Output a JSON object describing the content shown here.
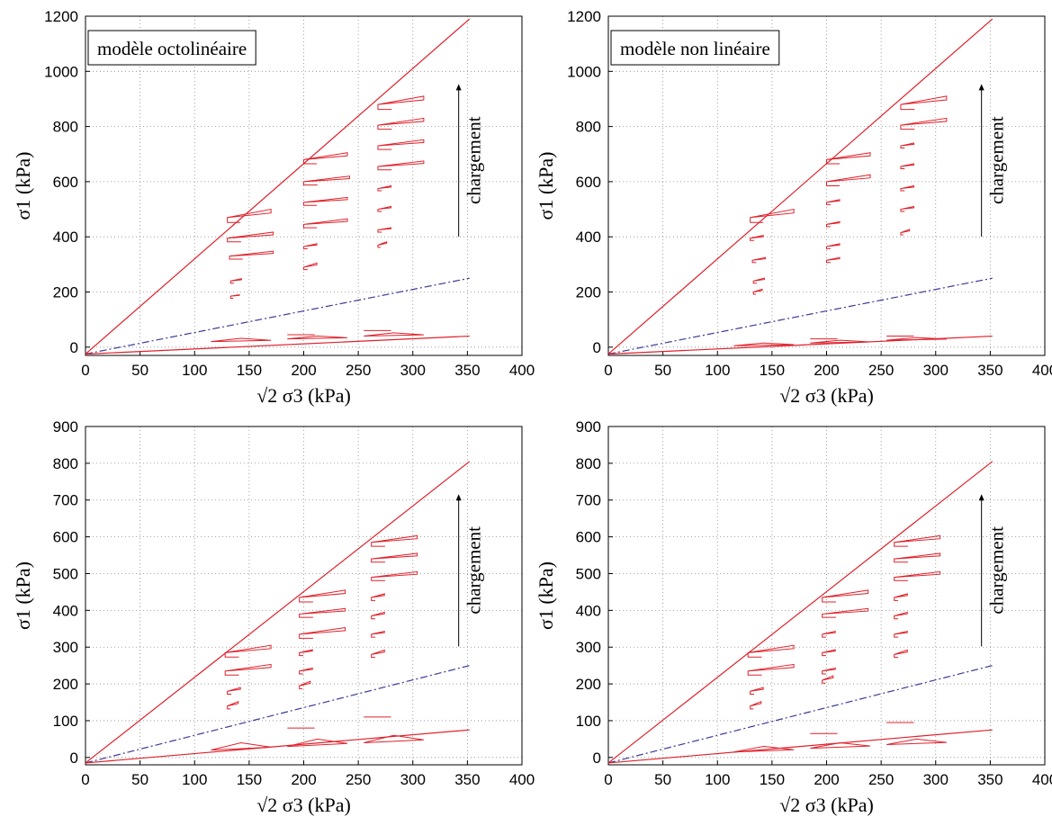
{
  "chart_data": [
    {
      "type": "line",
      "panel": "top-left",
      "title_box": "modèle octolinéaire",
      "xlabel": "√2 σ3 (kPa)",
      "ylabel": "σ1 (kPa)",
      "xlim": [
        0,
        400
      ],
      "ylim": [
        -30,
        1200
      ],
      "xticks": [
        "0",
        "50",
        "100",
        "150",
        "200",
        "250",
        "300",
        "350",
        "400"
      ],
      "yticks": [
        "0",
        "200",
        "400",
        "600",
        "800",
        "1000",
        "1200"
      ],
      "ytick_values": [
        0,
        200,
        400,
        600,
        800,
        1000,
        1200
      ],
      "grid": true,
      "arrow_label": "chargement",
      "lines": [
        {
          "style": "solid",
          "color": "#e0202a",
          "x": [
            0,
            352
          ],
          "y": [
            -25,
            1190
          ]
        },
        {
          "style": "dashdot",
          "color": "#3a3a9a",
          "x": [
            0,
            352
          ],
          "y": [
            -25,
            250
          ]
        },
        {
          "style": "solid",
          "color": "#e0202a",
          "x": [
            0,
            352
          ],
          "y": [
            -25,
            40
          ]
        }
      ],
      "glyphs": [
        {
          "x": 130,
          "y": 470,
          "dx": 40,
          "dy": 30
        },
        {
          "x": 130,
          "y": 395,
          "dx": 42,
          "dy": 22
        },
        {
          "x": 132,
          "y": 330,
          "dx": 40,
          "dy": 18
        },
        {
          "x": 133,
          "y": 240,
          "dx": 10,
          "dy": 8
        },
        {
          "x": 133,
          "y": 185,
          "dx": 8,
          "dy": 5
        },
        {
          "x": 200,
          "y": 680,
          "dx": 40,
          "dy": 25
        },
        {
          "x": 200,
          "y": 600,
          "dx": 42,
          "dy": 20
        },
        {
          "x": 200,
          "y": 525,
          "dx": 40,
          "dy": 18
        },
        {
          "x": 200,
          "y": 445,
          "dx": 40,
          "dy": 20
        },
        {
          "x": 200,
          "y": 365,
          "dx": 12,
          "dy": 10
        },
        {
          "x": 200,
          "y": 290,
          "dx": 12,
          "dy": 15
        },
        {
          "x": 268,
          "y": 880,
          "dx": 42,
          "dy": 30
        },
        {
          "x": 268,
          "y": 805,
          "dx": 42,
          "dy": 25
        },
        {
          "x": 268,
          "y": 730,
          "dx": 42,
          "dy": 22
        },
        {
          "x": 268,
          "y": 655,
          "dx": 42,
          "dy": 20
        },
        {
          "x": 268,
          "y": 575,
          "dx": 12,
          "dy": 10
        },
        {
          "x": 268,
          "y": 500,
          "dx": 12,
          "dy": 10
        },
        {
          "x": 268,
          "y": 425,
          "dx": 12,
          "dy": 8
        },
        {
          "x": 268,
          "y": 370,
          "dx": 8,
          "dy": 12
        }
      ],
      "low_glyphs": [
        {
          "x": 115,
          "y": 20,
          "dx": 55,
          "dy": 12
        },
        {
          "x": 185,
          "y": 30,
          "dx": 55,
          "dy": 10
        },
        {
          "x": 255,
          "y": 40,
          "dx": 55,
          "dy": 12
        },
        {
          "x": 185,
          "y": 45,
          "dx": 25,
          "dy": 0
        },
        {
          "x": 255,
          "y": 60,
          "dx": 25,
          "dy": 0
        }
      ]
    },
    {
      "type": "line",
      "panel": "top-right",
      "title_box": "modèle non linéaire",
      "xlabel": "√2 σ3 (kPa)",
      "ylabel": "σ1 (kPa)",
      "xlim": [
        0,
        400
      ],
      "ylim": [
        -30,
        1200
      ],
      "xticks": [
        "0",
        "50",
        "100",
        "150",
        "200",
        "250",
        "300",
        "350",
        "400"
      ],
      "yticks": [
        "0",
        "200",
        "400",
        "600",
        "800",
        "1000",
        "1200"
      ],
      "ytick_values": [
        0,
        200,
        400,
        600,
        800,
        1000,
        1200
      ],
      "grid": true,
      "arrow_label": "chargement",
      "lines": [
        {
          "style": "solid",
          "color": "#e0202a",
          "x": [
            0,
            352
          ],
          "y": [
            -25,
            1190
          ]
        },
        {
          "style": "dashdot",
          "color": "#3a3a9a",
          "x": [
            0,
            352
          ],
          "y": [
            -25,
            250
          ]
        },
        {
          "style": "solid",
          "color": "#e0202a",
          "x": [
            0,
            352
          ],
          "y": [
            -25,
            40
          ]
        }
      ],
      "glyphs": [
        {
          "x": 130,
          "y": 470,
          "dx": 40,
          "dy": 30
        },
        {
          "x": 130,
          "y": 395,
          "dx": 12,
          "dy": 10
        },
        {
          "x": 132,
          "y": 315,
          "dx": 12,
          "dy": 10
        },
        {
          "x": 133,
          "y": 240,
          "dx": 10,
          "dy": 10
        },
        {
          "x": 133,
          "y": 200,
          "dx": 8,
          "dy": 10
        },
        {
          "x": 200,
          "y": 680,
          "dx": 40,
          "dy": 25
        },
        {
          "x": 200,
          "y": 600,
          "dx": 40,
          "dy": 25
        },
        {
          "x": 200,
          "y": 525,
          "dx": 12,
          "dy": 10
        },
        {
          "x": 200,
          "y": 445,
          "dx": 12,
          "dy": 10
        },
        {
          "x": 200,
          "y": 365,
          "dx": 12,
          "dy": 10
        },
        {
          "x": 200,
          "y": 315,
          "dx": 12,
          "dy": 10
        },
        {
          "x": 268,
          "y": 880,
          "dx": 42,
          "dy": 30
        },
        {
          "x": 268,
          "y": 805,
          "dx": 42,
          "dy": 25
        },
        {
          "x": 268,
          "y": 730,
          "dx": 12,
          "dy": 10
        },
        {
          "x": 268,
          "y": 655,
          "dx": 12,
          "dy": 10
        },
        {
          "x": 268,
          "y": 575,
          "dx": 12,
          "dy": 10
        },
        {
          "x": 268,
          "y": 500,
          "dx": 12,
          "dy": 10
        },
        {
          "x": 268,
          "y": 415,
          "dx": 8,
          "dy": 12
        }
      ],
      "low_glyphs": [
        {
          "x": 115,
          "y": 5,
          "dx": 55,
          "dy": 10
        },
        {
          "x": 185,
          "y": 15,
          "dx": 55,
          "dy": 10
        },
        {
          "x": 255,
          "y": 25,
          "dx": 55,
          "dy": 10
        },
        {
          "x": 185,
          "y": 30,
          "dx": 25,
          "dy": 0
        },
        {
          "x": 255,
          "y": 40,
          "dx": 25,
          "dy": 0
        }
      ]
    },
    {
      "type": "line",
      "panel": "bottom-left",
      "xlabel": "√2 σ3 (kPa)",
      "ylabel": "σ1 (kPa)",
      "xlim": [
        0,
        400
      ],
      "ylim": [
        -20,
        900
      ],
      "xticks": [
        "0",
        "50",
        "100",
        "150",
        "200",
        "250",
        "300",
        "350",
        "400"
      ],
      "yticks": [
        "0",
        "100",
        "200",
        "300",
        "400",
        "500",
        "600",
        "700",
        "800",
        "900"
      ],
      "ytick_values": [
        0,
        100,
        200,
        300,
        400,
        500,
        600,
        700,
        800,
        900
      ],
      "grid": true,
      "arrow_label": "chargement",
      "lines": [
        {
          "style": "solid",
          "color": "#e0202a",
          "x": [
            0,
            352
          ],
          "y": [
            -15,
            805
          ]
        },
        {
          "style": "dashdot",
          "color": "#3a3a9a",
          "x": [
            0,
            352
          ],
          "y": [
            -15,
            250
          ]
        },
        {
          "style": "solid",
          "color": "#e0202a",
          "x": [
            0,
            352
          ],
          "y": [
            -15,
            75
          ]
        }
      ],
      "glyphs": [
        {
          "x": 128,
          "y": 285,
          "dx": 42,
          "dy": 20
        },
        {
          "x": 128,
          "y": 235,
          "dx": 42,
          "dy": 18
        },
        {
          "x": 130,
          "y": 180,
          "dx": 12,
          "dy": 10
        },
        {
          "x": 130,
          "y": 140,
          "dx": 10,
          "dy": 12
        },
        {
          "x": 196,
          "y": 435,
          "dx": 42,
          "dy": 20
        },
        {
          "x": 196,
          "y": 390,
          "dx": 42,
          "dy": 15
        },
        {
          "x": 196,
          "y": 335,
          "dx": 42,
          "dy": 18
        },
        {
          "x": 196,
          "y": 285,
          "dx": 12,
          "dy": 8
        },
        {
          "x": 196,
          "y": 235,
          "dx": 12,
          "dy": 8
        },
        {
          "x": 196,
          "y": 195,
          "dx": 10,
          "dy": 12
        },
        {
          "x": 262,
          "y": 585,
          "dx": 42,
          "dy": 18
        },
        {
          "x": 262,
          "y": 540,
          "dx": 42,
          "dy": 15
        },
        {
          "x": 262,
          "y": 490,
          "dx": 42,
          "dy": 15
        },
        {
          "x": 262,
          "y": 435,
          "dx": 12,
          "dy": 10
        },
        {
          "x": 262,
          "y": 385,
          "dx": 12,
          "dy": 10
        },
        {
          "x": 262,
          "y": 335,
          "dx": 12,
          "dy": 8
        },
        {
          "x": 262,
          "y": 280,
          "dx": 12,
          "dy": 12
        }
      ],
      "low_glyphs": [
        {
          "x": 115,
          "y": 20,
          "dx": 55,
          "dy": 20
        },
        {
          "x": 185,
          "y": 30,
          "dx": 55,
          "dy": 20
        },
        {
          "x": 255,
          "y": 40,
          "dx": 55,
          "dy": 20
        },
        {
          "x": 185,
          "y": 80,
          "dx": 25,
          "dy": 0
        },
        {
          "x": 255,
          "y": 110,
          "dx": 25,
          "dy": 0
        }
      ]
    },
    {
      "type": "line",
      "panel": "bottom-right",
      "xlabel": "√2 σ3 (kPa)",
      "ylabel": "σ1 (kPa)",
      "xlim": [
        0,
        400
      ],
      "ylim": [
        -20,
        900
      ],
      "xticks": [
        "0",
        "50",
        "100",
        "150",
        "200",
        "250",
        "300",
        "350",
        "400"
      ],
      "yticks": [
        "0",
        "100",
        "200",
        "300",
        "400",
        "500",
        "600",
        "700",
        "800",
        "900"
      ],
      "ytick_values": [
        0,
        100,
        200,
        300,
        400,
        500,
        600,
        700,
        800,
        900
      ],
      "grid": true,
      "arrow_label": "chargement",
      "lines": [
        {
          "style": "solid",
          "color": "#e0202a",
          "x": [
            0,
            352
          ],
          "y": [
            -15,
            805
          ]
        },
        {
          "style": "dashdot",
          "color": "#3a3a9a",
          "x": [
            0,
            352
          ],
          "y": [
            -15,
            250
          ]
        },
        {
          "style": "solid",
          "color": "#e0202a",
          "x": [
            0,
            352
          ],
          "y": [
            -15,
            75
          ]
        }
      ],
      "glyphs": [
        {
          "x": 128,
          "y": 285,
          "dx": 42,
          "dy": 20
        },
        {
          "x": 128,
          "y": 235,
          "dx": 42,
          "dy": 18
        },
        {
          "x": 130,
          "y": 180,
          "dx": 12,
          "dy": 10
        },
        {
          "x": 130,
          "y": 140,
          "dx": 10,
          "dy": 12
        },
        {
          "x": 196,
          "y": 435,
          "dx": 42,
          "dy": 20
        },
        {
          "x": 196,
          "y": 390,
          "dx": 42,
          "dy": 15
        },
        {
          "x": 196,
          "y": 335,
          "dx": 12,
          "dy": 8
        },
        {
          "x": 196,
          "y": 285,
          "dx": 12,
          "dy": 8
        },
        {
          "x": 196,
          "y": 235,
          "dx": 12,
          "dy": 8
        },
        {
          "x": 196,
          "y": 210,
          "dx": 10,
          "dy": 12
        },
        {
          "x": 262,
          "y": 585,
          "dx": 42,
          "dy": 18
        },
        {
          "x": 262,
          "y": 540,
          "dx": 42,
          "dy": 15
        },
        {
          "x": 262,
          "y": 490,
          "dx": 42,
          "dy": 15
        },
        {
          "x": 262,
          "y": 435,
          "dx": 12,
          "dy": 10
        },
        {
          "x": 262,
          "y": 385,
          "dx": 12,
          "dy": 10
        },
        {
          "x": 262,
          "y": 335,
          "dx": 12,
          "dy": 8
        },
        {
          "x": 262,
          "y": 280,
          "dx": 12,
          "dy": 12
        }
      ],
      "low_glyphs": [
        {
          "x": 115,
          "y": 15,
          "dx": 55,
          "dy": 15
        },
        {
          "x": 185,
          "y": 25,
          "dx": 55,
          "dy": 15
        },
        {
          "x": 255,
          "y": 35,
          "dx": 55,
          "dy": 15
        },
        {
          "x": 185,
          "y": 65,
          "dx": 25,
          "dy": 0
        },
        {
          "x": 255,
          "y": 95,
          "dx": 25,
          "dy": 0
        }
      ]
    }
  ]
}
